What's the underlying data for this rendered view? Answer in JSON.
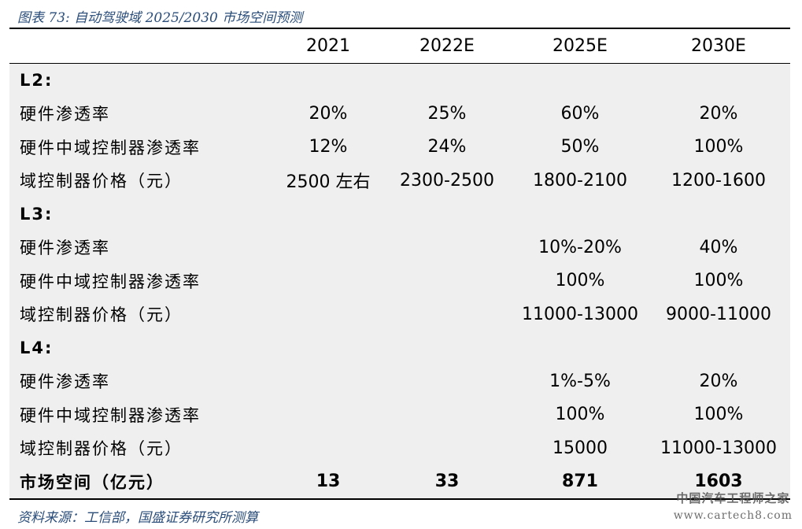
{
  "caption": "图表 73:  自动驾驶域 2025/2030 市场空间预测",
  "header": [
    "2021",
    "2022E",
    "2025E",
    "2030E"
  ],
  "sections": [
    {
      "title": "L2:",
      "rows": [
        {
          "label": "硬件渗透率",
          "values": [
            "20%",
            "25%",
            "60%",
            "20%"
          ]
        },
        {
          "label": "硬件中域控制器渗透率",
          "values": [
            "12%",
            "24%",
            "50%",
            "100%"
          ]
        },
        {
          "label": "域控制器价格（元）",
          "values": [
            "2500 左右",
            "2300-2500",
            "1800-2100",
            "1200-1600"
          ]
        }
      ]
    },
    {
      "title": "L3:",
      "rows": [
        {
          "label": "硬件渗透率",
          "values": [
            "",
            "",
            "10%-20%",
            "40%"
          ]
        },
        {
          "label": "硬件中域控制器渗透率",
          "values": [
            "",
            "",
            "100%",
            "100%"
          ]
        },
        {
          "label": "域控制器价格（元）",
          "values": [
            "",
            "",
            "11000-13000",
            "9000-11000"
          ]
        }
      ]
    },
    {
      "title": "L4:",
      "rows": [
        {
          "label": "硬件渗透率",
          "values": [
            "",
            "",
            "1%-5%",
            "20%"
          ]
        },
        {
          "label": "硬件中域控制器渗透率",
          "values": [
            "",
            "",
            "100%",
            "100%"
          ]
        },
        {
          "label": "域控制器价格（元）",
          "values": [
            "",
            "",
            "15000",
            "11000-13000"
          ]
        }
      ]
    }
  ],
  "total": {
    "label": "市场空间（亿元）",
    "values": [
      "13",
      "33",
      "871",
      "1603"
    ]
  },
  "source": "资料来源：工信部，国盛证券研究所测算",
  "watermark": {
    "line1": "中国汽车工程师之家",
    "line2": "www.cartech8.com"
  }
}
